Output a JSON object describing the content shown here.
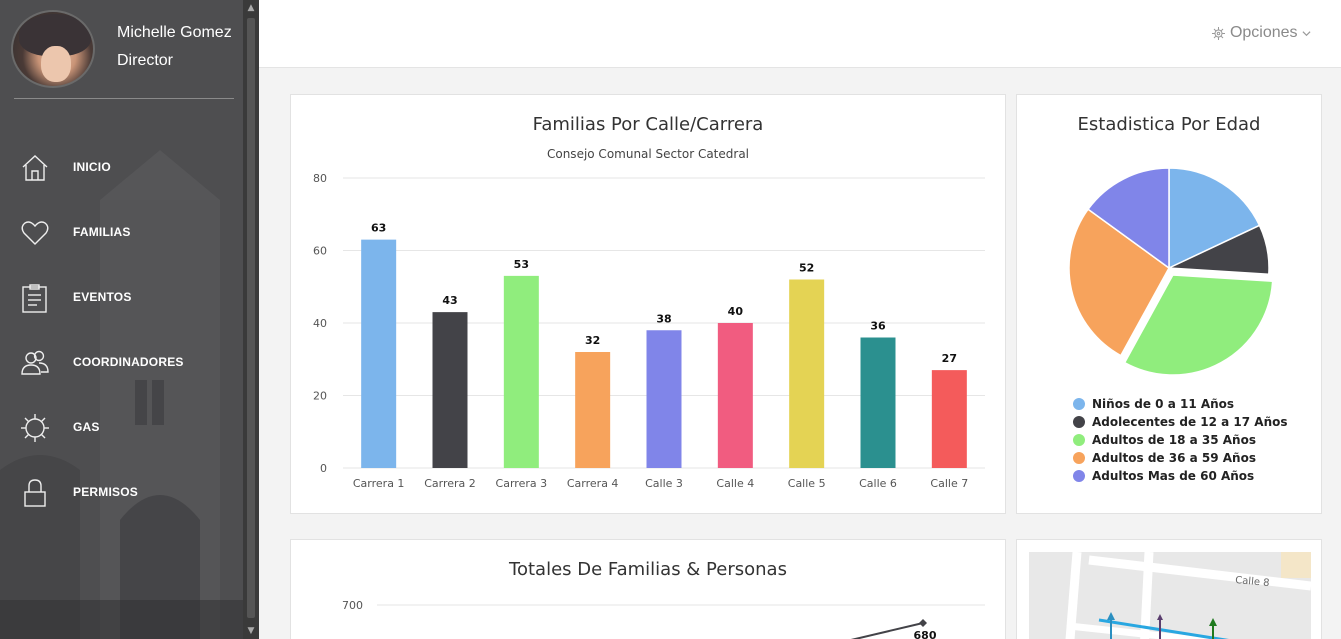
{
  "user": {
    "name": "Michelle Gomez",
    "role": "Director"
  },
  "nav": [
    {
      "label": "INICIO",
      "icon": "home-icon"
    },
    {
      "label": "FAMILIAS",
      "icon": "heart-icon"
    },
    {
      "label": "EVENTOS",
      "icon": "clipboard-icon"
    },
    {
      "label": "COORDINADORES",
      "icon": "users-icon"
    },
    {
      "label": "GAS",
      "icon": "gear-icon"
    },
    {
      "label": "PERMISOS",
      "icon": "lock-icon"
    }
  ],
  "topbar": {
    "options_label": "Opciones"
  },
  "colors": {
    "blue": "#7cb5ec",
    "dark": "#434348",
    "green": "#90ed7d",
    "orange": "#f7a35c",
    "purple": "#8085e9",
    "pink": "#f15c80",
    "yellow": "#e4d354",
    "teal": "#2b908f",
    "red": "#f45b5b"
  },
  "chart_data": [
    {
      "type": "bar",
      "title": "Familias Por Calle/Carrera",
      "subtitle": "Consejo Comunal Sector Catedral",
      "categories": [
        "Carrera 1",
        "Carrera 2",
        "Carrera 3",
        "Carrera 4",
        "Calle 3",
        "Calle 4",
        "Calle 5",
        "Calle 6",
        "Calle 7"
      ],
      "values": [
        63,
        43,
        53,
        32,
        38,
        40,
        52,
        36,
        27
      ],
      "bar_colors": [
        "#7cb5ec",
        "#434348",
        "#90ed7d",
        "#f7a35c",
        "#8085e9",
        "#f15c80",
        "#e4d354",
        "#2b908f",
        "#f45b5b"
      ],
      "yticks": [
        "0",
        "20",
        "40",
        "60",
        "80"
      ],
      "ylim": [
        0,
        80
      ],
      "grid": true
    },
    {
      "type": "pie",
      "title": "Estadistica Por Edad",
      "labels": [
        "Niños de 0 a 11 Años",
        "Adolecentes de 12 a 17 Años",
        "Adultos de 18 a 35 Años",
        "Adultos de 36 a 59 Años",
        "Adultos Mas de 60 Años"
      ],
      "values": [
        18,
        8,
        32,
        27,
        15
      ],
      "colors": [
        "#7cb5ec",
        "#434348",
        "#90ed7d",
        "#f7a35c",
        "#8085e9"
      ],
      "legend": "bottom"
    },
    {
      "type": "line",
      "title": "Totales De Familias & Personas",
      "ytick_visible": "700",
      "label_visible": "680",
      "partial": true
    }
  ],
  "map": {
    "street_label": "Calle 8"
  }
}
